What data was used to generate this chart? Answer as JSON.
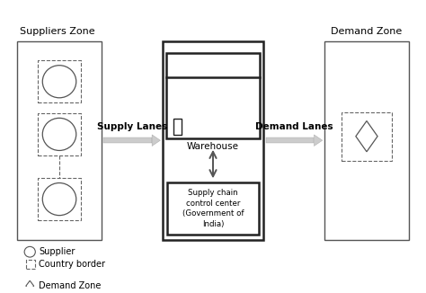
{
  "bg_color": "#ffffff",
  "title_fontsize": 8,
  "label_fontsize": 7.5,
  "legend_fontsize": 7,
  "suppliers_zone_label": "Suppliers Zone",
  "demand_zone_label": "Demand Zone",
  "warehouse_label": "Warehouse",
  "sccc_label": "Supply chain\ncontrol center\n(Government of\nIndia)",
  "supply_lanes_label": "Supply Lanes",
  "demand_lanes_label": "Demand Lanes",
  "legend_items": [
    "Supplier",
    "Country border",
    "Demand Zone"
  ],
  "line_color": "#555555",
  "thick_color": "#222222",
  "dash_color": "#666666",
  "arrow_color": "#aaaaaa"
}
